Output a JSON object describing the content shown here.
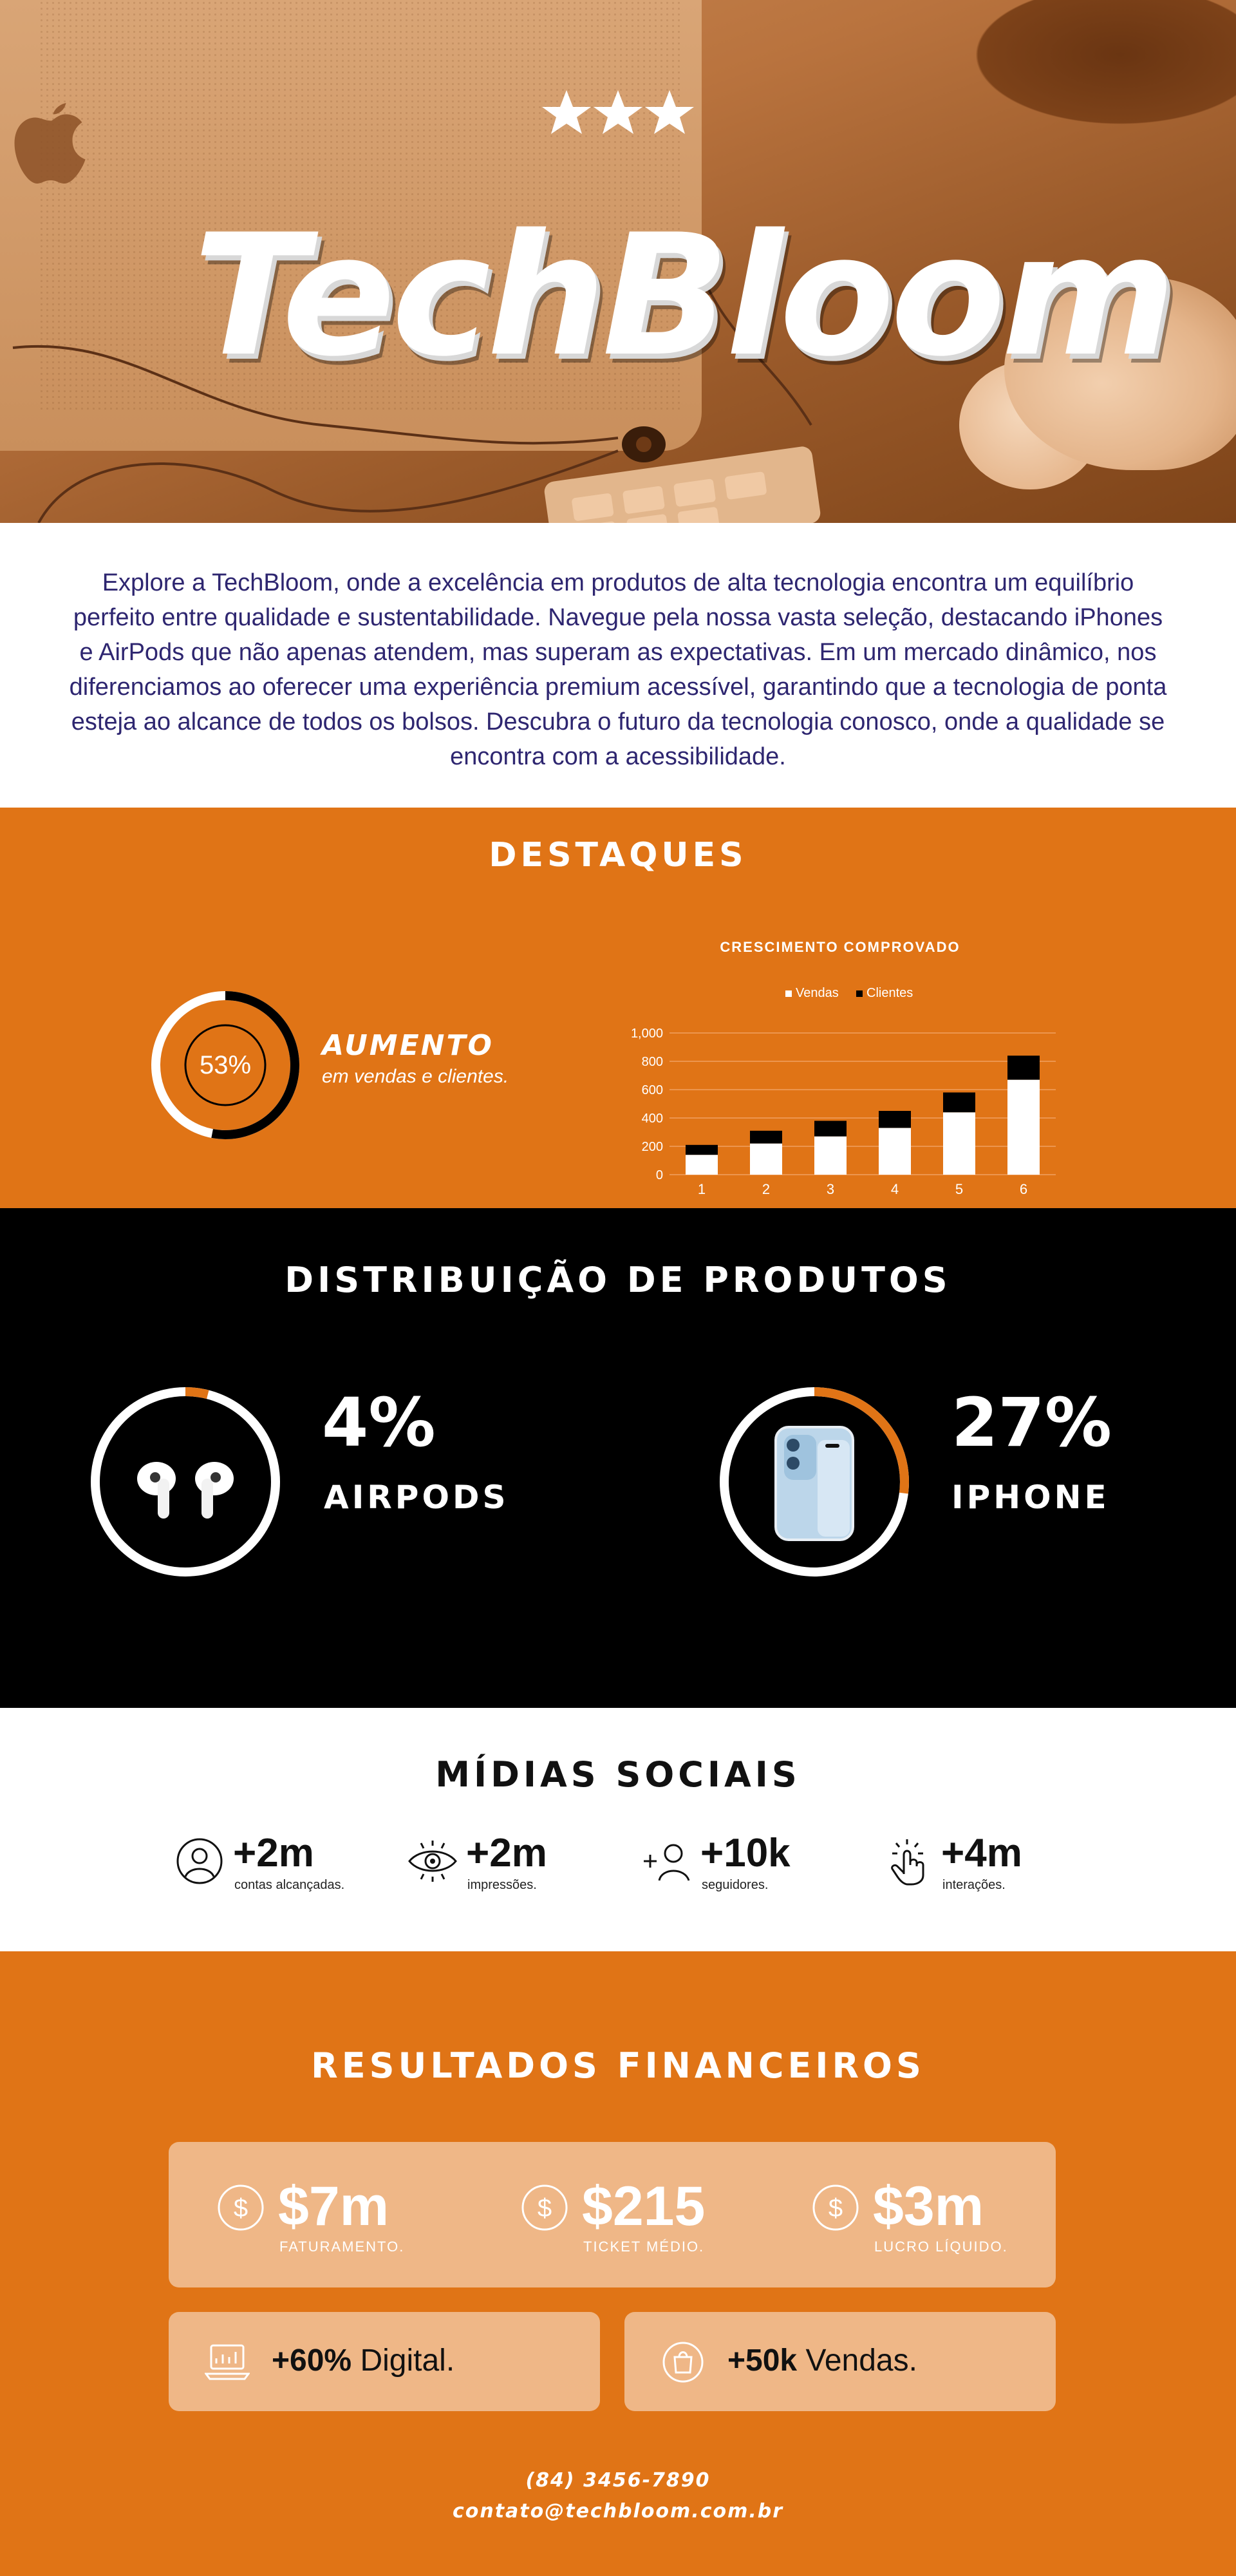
{
  "hero": {
    "brand": "TechBloom",
    "stars": "★★★"
  },
  "intro": {
    "text": "Explore a TechBloom, onde a excelência em produtos de alta tecnologia encontra um equilíbrio perfeito entre qualidade e sustentabilidade. Navegue pela nossa vasta seleção, destacando iPhones e AirPods que não apenas atendem, mas superam as expectativas. Em um mercado dinâmico, nos diferenciamos ao oferecer uma experiência premium acessível, garantindo que a tecnologia de ponta esteja ao alcance de todos os bolsos. Descubra o futuro da tecnologia conosco, onde a qualidade se encontra com a acessibilidade."
  },
  "destaques": {
    "title": "DESTAQUES",
    "ring_value": "53%",
    "ring_fraction": 0.53,
    "highlight_title": "AUMENTO",
    "highlight_sub": "em vendas e clientes."
  },
  "chart_data": {
    "type": "bar",
    "stacked": true,
    "title": "CRESCIMENTO COMPROVADO",
    "categories": [
      "1",
      "2",
      "3",
      "4",
      "5",
      "6"
    ],
    "series": [
      {
        "name": "Vendas",
        "color": "#ffffff",
        "values": [
          140,
          220,
          270,
          330,
          440,
          670
        ]
      },
      {
        "name": "Clientes",
        "color": "#000000",
        "values": [
          70,
          90,
          110,
          120,
          140,
          170
        ]
      }
    ],
    "y_ticks": [
      "0",
      "200",
      "400",
      "600",
      "800",
      "1,000"
    ],
    "ylim": [
      0,
      1000
    ],
    "legend_position": "top-center",
    "grid": true,
    "xlabel": "",
    "ylabel": ""
  },
  "distribuicao": {
    "title": "DISTRIBUIÇÃO DE PRODUTOS",
    "items": [
      {
        "percent": "4%",
        "fraction": 0.04,
        "name": "AIRPODS",
        "icon": "airpods-icon"
      },
      {
        "percent": "27%",
        "fraction": 0.27,
        "name": "IPHONE",
        "icon": "iphone-icon"
      }
    ]
  },
  "midias": {
    "title": "MÍDIAS SOCIAIS",
    "stats": [
      {
        "value": "+2m",
        "caption": "contas alcançadas.",
        "icon": "user-circle-icon"
      },
      {
        "value": "+2m",
        "caption": "impressões.",
        "icon": "eye-icon"
      },
      {
        "value": "+10k",
        "caption": "seguidores.",
        "icon": "add-user-icon"
      },
      {
        "value": "+4m",
        "caption": "interações.",
        "icon": "tap-icon"
      }
    ]
  },
  "financeiros": {
    "title": "RESULTADOS FINANCEIROS",
    "metrics": [
      {
        "value": "$7m",
        "label": "FATURAMENTO.",
        "icon": "dollar-icon"
      },
      {
        "value": "$215",
        "label": "TICKET MÉDIO.",
        "icon": "dollar-icon"
      },
      {
        "value": "$3m",
        "label": "LUCRO LÍQUIDO.",
        "icon": "dollar-icon"
      }
    ],
    "digital": {
      "strong": "+60%",
      "rest": " Digital.",
      "icon": "laptop-chart-icon"
    },
    "vendas": {
      "strong": "+50k",
      "rest": " Vendas.",
      "icon": "shopping-bag-icon"
    },
    "accent": "#e07416",
    "box_color": "#efb787"
  },
  "contact": {
    "phone": "(84) 3456-7890",
    "email": "contato@techbloom.com.br"
  }
}
